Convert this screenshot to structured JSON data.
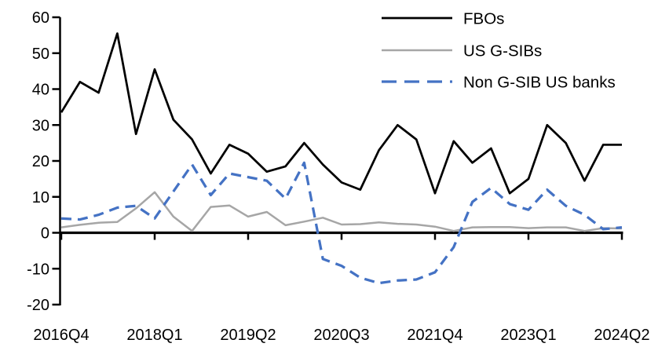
{
  "figure": {
    "background_color": "#ffffff",
    "kind": "excel-style line chart, no gridlines, legend top-right"
  },
  "chart_data": {
    "type": "line",
    "title": "",
    "xlabel": "",
    "ylabel": "",
    "grid": false,
    "legend_position": "top-right",
    "ylim": [
      -20,
      60
    ],
    "y_ticks": [
      60,
      50,
      40,
      30,
      20,
      10,
      0,
      -10,
      -20
    ],
    "x_tick_labels": [
      "2016Q4",
      "2018Q1",
      "2019Q2",
      "2020Q3",
      "2021Q4",
      "2023Q1",
      "2024Q2"
    ],
    "x_tick_indices": [
      0,
      5,
      10,
      15,
      20,
      25,
      30
    ],
    "categories": [
      "2016Q4",
      "2017Q1",
      "2017Q2",
      "2017Q3",
      "2017Q4",
      "2018Q1",
      "2018Q2",
      "2018Q3",
      "2018Q4",
      "2019Q1",
      "2019Q2",
      "2019Q3",
      "2019Q4",
      "2020Q1",
      "2020Q2",
      "2020Q3",
      "2020Q4",
      "2021Q1",
      "2021Q2",
      "2021Q3",
      "2021Q4",
      "2022Q1",
      "2022Q2",
      "2022Q3",
      "2022Q4",
      "2023Q1",
      "2023Q2",
      "2023Q3",
      "2023Q4",
      "2024Q1",
      "2024Q2"
    ],
    "series": [
      {
        "name": "FBOs",
        "color": "#000000",
        "line_style": "solid",
        "line_width": 2.75,
        "values": [
          33.5,
          42,
          39,
          55.5,
          27.5,
          45.5,
          31.5,
          26,
          16.5,
          24.5,
          22,
          17,
          18.5,
          25,
          19,
          14,
          12,
          23,
          30,
          26,
          11,
          25.5,
          19.5,
          23.5,
          11,
          15,
          30,
          25,
          14.5,
          24.5,
          24.5
        ]
      },
      {
        "name": "US G-SIBs",
        "color": "#a6a6a6",
        "line_style": "solid",
        "line_width": 2.5,
        "values": [
          1.5,
          2.2,
          2.8,
          3,
          6.8,
          11.3,
          4.5,
          0.5,
          7.2,
          7.6,
          4.5,
          5.8,
          2.1,
          3.1,
          4.2,
          2.3,
          2.4,
          2.9,
          2.5,
          2.3,
          1.7,
          0.5,
          1.5,
          1.6,
          1.6,
          1.3,
          1.5,
          1.5,
          0.5,
          1.3,
          1.2
        ]
      },
      {
        "name": "Non G-SIB US banks",
        "color": "#4472c4",
        "line_style": "dashed",
        "line_width": 3.25,
        "values": [
          4,
          3.7,
          5,
          7,
          7.5,
          4,
          11.5,
          19,
          10.5,
          16.5,
          15.5,
          14.5,
          9.5,
          19.5,
          -7.3,
          -9.2,
          -12.5,
          -14,
          -13.3,
          -13,
          -11,
          -4,
          8.6,
          12.5,
          8,
          6.4,
          12,
          7.5,
          5,
          1,
          1.5
        ]
      }
    ],
    "axis_color": "#000000",
    "tick_label_font_px": 20,
    "legend_font_px": 20.5
  }
}
